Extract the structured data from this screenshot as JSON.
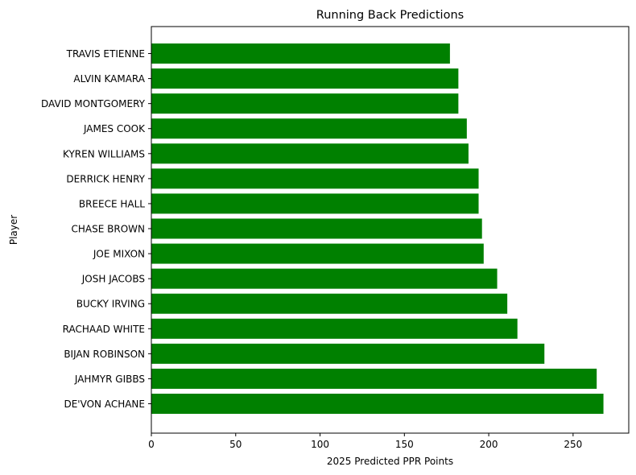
{
  "chart_data": {
    "type": "bar",
    "orientation": "horizontal",
    "title": "Running Back Predictions",
    "xlabel": "2025 Predicted PPR Points",
    "ylabel": "Player",
    "xlim": [
      0,
      283
    ],
    "xticks": [
      0,
      50,
      100,
      150,
      200,
      250
    ],
    "bar_color": "#008000",
    "grid": false,
    "legend": "none",
    "categories": [
      "DE'VON ACHANE",
      "JAHMYR GIBBS",
      "BIJAN ROBINSON",
      "RACHAAD WHITE",
      "BUCKY IRVING",
      "JOSH JACOBS",
      "JOE MIXON",
      "CHASE BROWN",
      "BREECE HALL",
      "DERRICK HENRY",
      "KYREN WILLIAMS",
      "JAMES COOK",
      "DAVID MONTGOMERY",
      "ALVIN KAMARA",
      "TRAVIS ETIENNE"
    ],
    "values": [
      268,
      264,
      233,
      217,
      211,
      205,
      197,
      196,
      194,
      194,
      188,
      187,
      182,
      182,
      177
    ]
  }
}
